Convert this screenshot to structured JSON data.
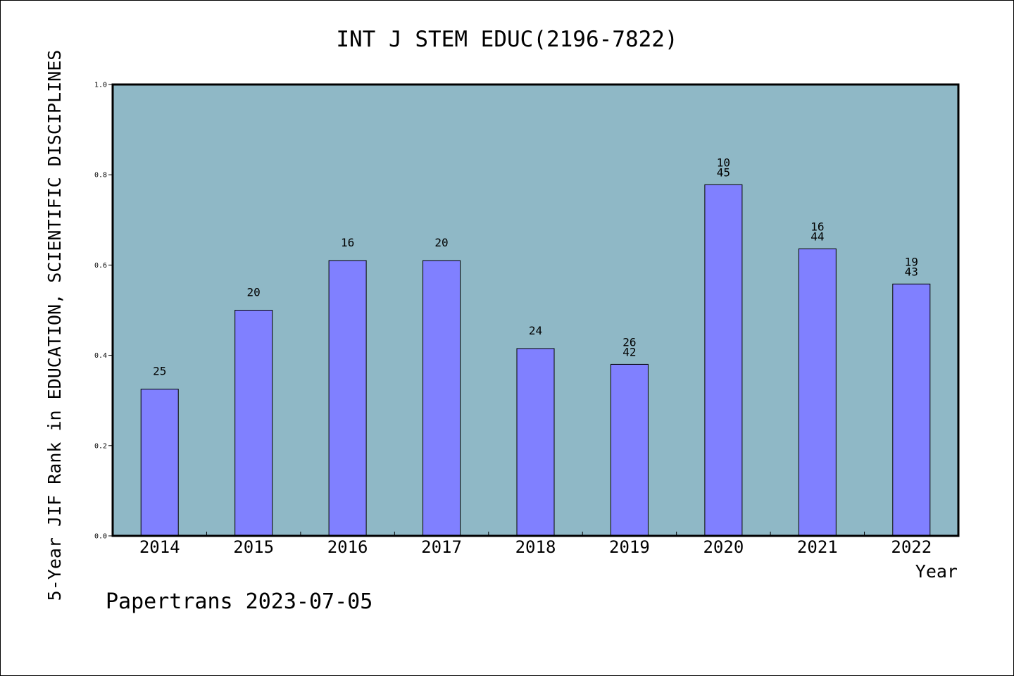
{
  "chart_data": {
    "type": "bar",
    "title": "INT J STEM EDUC(2196-7822)",
    "xlabel": "Year",
    "ylabel": "5-Year JIF Rank in EDUCATION, SCIENTIFIC DISCIPLINES",
    "ylim": [
      0,
      1.0
    ],
    "yticks": [
      "0.0",
      "0.2",
      "0.4",
      "0.6",
      "0.8",
      "1.0"
    ],
    "categories": [
      "2014",
      "2015",
      "2016",
      "2017",
      "2018",
      "2019",
      "2020",
      "2021",
      "2022"
    ],
    "values": [
      0.325,
      0.5,
      0.61,
      0.61,
      0.415,
      0.38,
      0.778,
      0.636,
      0.558
    ],
    "data_labels": [
      [
        "25"
      ],
      [
        "20"
      ],
      [
        "16"
      ],
      [
        "20"
      ],
      [
        "24"
      ],
      [
        "26",
        "42"
      ],
      [
        "10",
        "45"
      ],
      [
        "16",
        "44"
      ],
      [
        "19",
        "43"
      ]
    ],
    "grid": false,
    "colors": {
      "plot_background": "#8fb8c6",
      "bar_fill": "#8080ff",
      "bar_stroke": "#000000"
    }
  },
  "footer": {
    "text": "Papertrans 2023-07-05"
  }
}
